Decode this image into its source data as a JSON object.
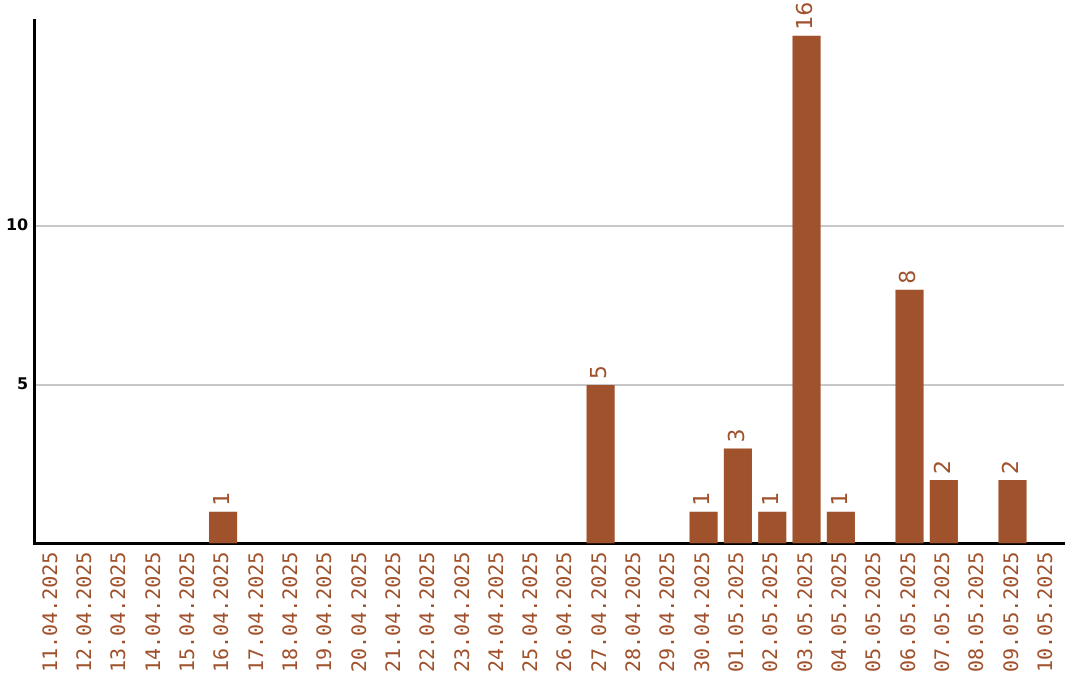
{
  "chart_data": {
    "type": "bar",
    "categories": [
      "11.04.2025",
      "12.04.2025",
      "13.04.2025",
      "14.04.2025",
      "15.04.2025",
      "16.04.2025",
      "17.04.2025",
      "18.04.2025",
      "19.04.2025",
      "20.04.2025",
      "21.04.2025",
      "22.04.2025",
      "23.04.2025",
      "24.04.2025",
      "25.04.2025",
      "26.04.2025",
      "27.04.2025",
      "28.04.2025",
      "29.04.2025",
      "30.04.2025",
      "01.05.2025",
      "02.05.2025",
      "03.05.2025",
      "04.05.2025",
      "05.05.2025",
      "06.05.2025",
      "07.05.2025",
      "08.05.2025",
      "09.05.2025",
      "10.05.2025"
    ],
    "values": [
      0,
      0,
      0,
      0,
      0,
      1,
      0,
      0,
      0,
      0,
      0,
      0,
      0,
      0,
      0,
      0,
      5,
      0,
      0,
      1,
      3,
      1,
      16,
      1,
      0,
      8,
      2,
      0,
      2,
      0
    ],
    "value_labels": [
      null,
      null,
      null,
      null,
      null,
      "1",
      null,
      null,
      null,
      null,
      null,
      null,
      null,
      null,
      null,
      null,
      "5",
      null,
      null,
      "1",
      "3",
      "1",
      "16",
      "1",
      null,
      "8",
      "2",
      null,
      "2",
      null
    ],
    "color": "#a0522d",
    "ylim": [
      0,
      16.5
    ],
    "yticks": [
      5,
      10
    ],
    "grid": "y"
  }
}
